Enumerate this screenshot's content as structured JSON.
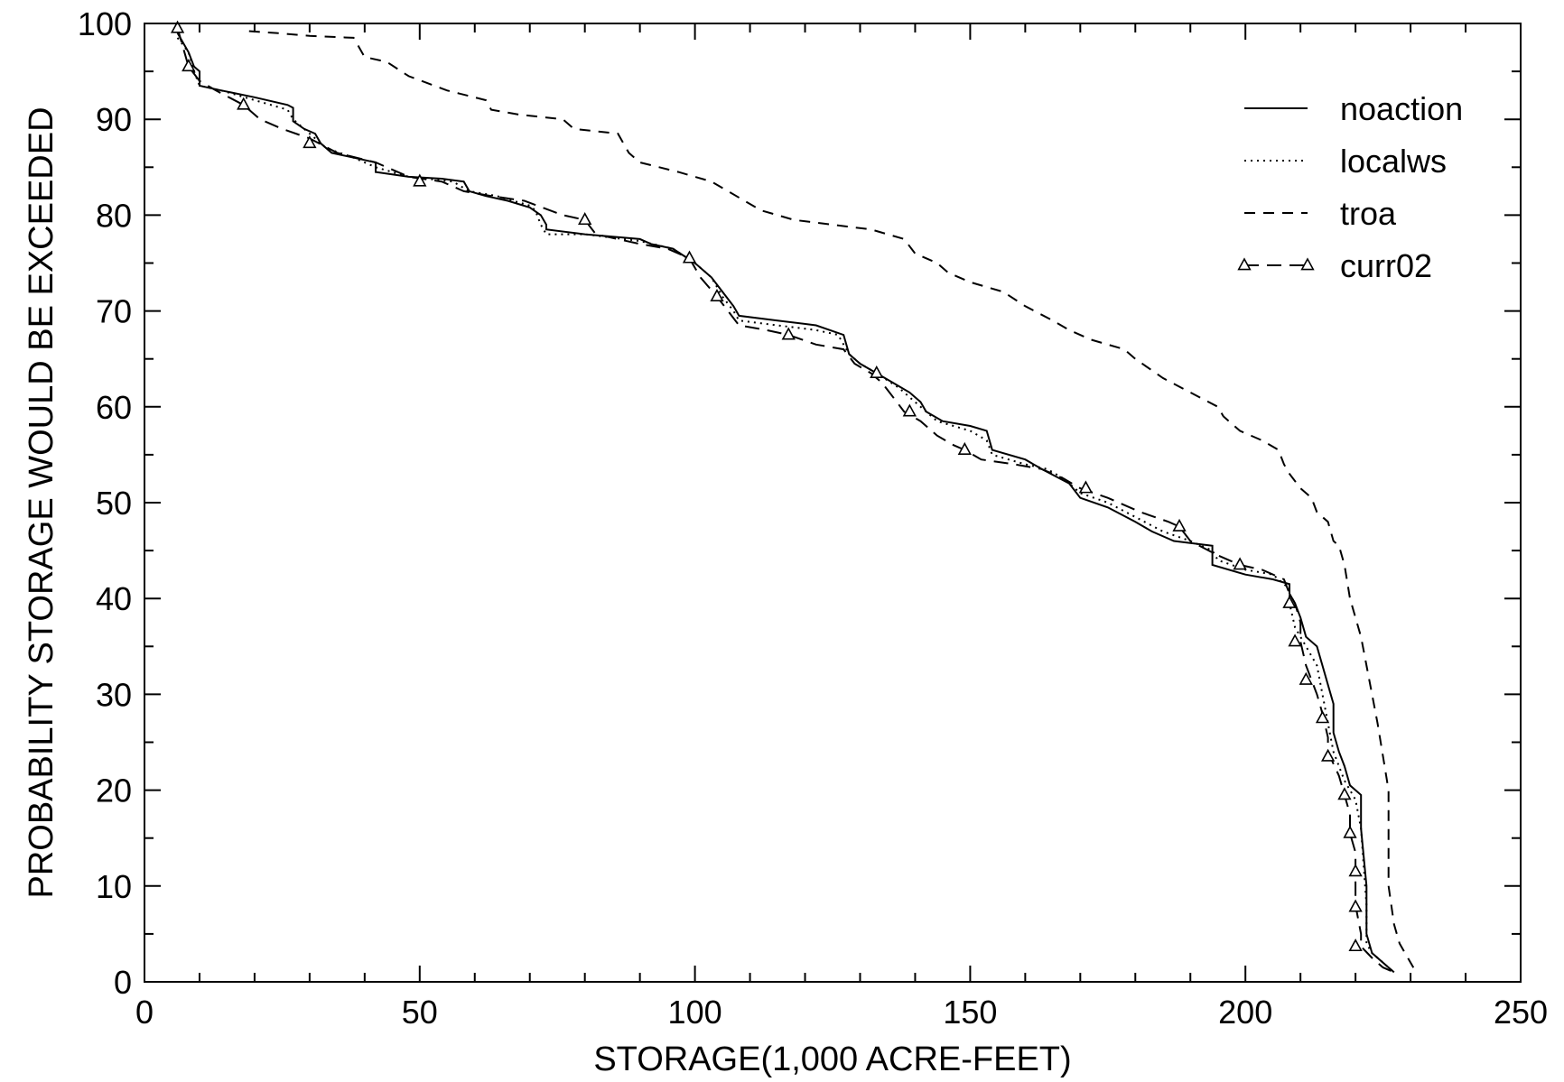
{
  "chart_data": {
    "type": "line",
    "title": "",
    "xlabel": "STORAGE(1,000 ACRE-FEET)",
    "ylabel": "PROBABILITY STORAGE WOULD BE EXCEEDED",
    "xlim": [
      0,
      250
    ],
    "ylim": [
      0,
      100
    ],
    "x_ticks": [
      0,
      50,
      100,
      150,
      200,
      250
    ],
    "y_ticks": [
      0,
      10,
      20,
      30,
      40,
      50,
      60,
      70,
      80,
      90,
      100
    ],
    "legend_position": "top-right",
    "series": [
      {
        "name": "noaction",
        "style": "solid",
        "points": [
          [
            6,
            99
          ],
          [
            7,
            98
          ],
          [
            8,
            97
          ],
          [
            9,
            95.5
          ],
          [
            10,
            95
          ],
          [
            10,
            93.5
          ],
          [
            14,
            93
          ],
          [
            20,
            92.3
          ],
          [
            26,
            91.5
          ],
          [
            27,
            91.2
          ],
          [
            27,
            89.8
          ],
          [
            29,
            89
          ],
          [
            31,
            88.5
          ],
          [
            32,
            87.5
          ],
          [
            34,
            86.5
          ],
          [
            38,
            86
          ],
          [
            42,
            85.5
          ],
          [
            42,
            84.5
          ],
          [
            48,
            84
          ],
          [
            54,
            83.8
          ],
          [
            58,
            83.5
          ],
          [
            59,
            82.5
          ],
          [
            62,
            82
          ],
          [
            66,
            81.5
          ],
          [
            70,
            80.8
          ],
          [
            72,
            80
          ],
          [
            73,
            79
          ],
          [
            73,
            78.5
          ],
          [
            80,
            78
          ],
          [
            90,
            77.5
          ],
          [
            92,
            77
          ],
          [
            96,
            76.5
          ],
          [
            100,
            75
          ],
          [
            103,
            73.5
          ],
          [
            105,
            72
          ],
          [
            107,
            70.5
          ],
          [
            108,
            69.5
          ],
          [
            115,
            69
          ],
          [
            122,
            68.5
          ],
          [
            127,
            67.5
          ],
          [
            128,
            65.5
          ],
          [
            129,
            65
          ],
          [
            130,
            64.5
          ],
          [
            133,
            63.5
          ],
          [
            136,
            62.5
          ],
          [
            139,
            61.5
          ],
          [
            141,
            60.5
          ],
          [
            142,
            59.5
          ],
          [
            145,
            58.5
          ],
          [
            150,
            58
          ],
          [
            153,
            57.5
          ],
          [
            154,
            55.5
          ],
          [
            160,
            54.5
          ],
          [
            163,
            53.5
          ],
          [
            168,
            52
          ],
          [
            170,
            50.5
          ],
          [
            175,
            49.5
          ],
          [
            180,
            48
          ],
          [
            183,
            47
          ],
          [
            187,
            46
          ],
          [
            194,
            45.5
          ],
          [
            194,
            43.5
          ],
          [
            200,
            42.5
          ],
          [
            205,
            42
          ],
          [
            208,
            41.5
          ],
          [
            208,
            40.5
          ],
          [
            209,
            39.5
          ],
          [
            210,
            38
          ],
          [
            211,
            36
          ],
          [
            213,
            35
          ],
          [
            214,
            33
          ],
          [
            215,
            31
          ],
          [
            216,
            29
          ],
          [
            216,
            26
          ],
          [
            217,
            24
          ],
          [
            218,
            22.5
          ],
          [
            219,
            20.5
          ],
          [
            221,
            19.5
          ],
          [
            221,
            16
          ],
          [
            222,
            10
          ],
          [
            222,
            5
          ],
          [
            223,
            3
          ],
          [
            226,
            1.5
          ],
          [
            227,
            1
          ]
        ]
      },
      {
        "name": "localws",
        "style": "dotted",
        "points": [
          [
            6,
            98.5
          ],
          [
            8,
            97
          ],
          [
            9,
            95
          ],
          [
            10,
            93.5
          ],
          [
            14,
            93
          ],
          [
            20,
            92
          ],
          [
            26,
            91
          ],
          [
            27,
            90
          ],
          [
            29,
            89
          ],
          [
            31,
            88
          ],
          [
            33,
            87
          ],
          [
            38,
            86
          ],
          [
            42,
            85
          ],
          [
            48,
            84
          ],
          [
            56,
            83.5
          ],
          [
            59,
            82.5
          ],
          [
            64,
            82
          ],
          [
            70,
            81
          ],
          [
            71,
            80.5
          ],
          [
            72,
            79
          ],
          [
            73,
            78
          ],
          [
            80,
            78
          ],
          [
            90,
            77.3
          ],
          [
            96,
            76.5
          ],
          [
            100,
            75
          ],
          [
            103,
            73.5
          ],
          [
            105,
            71.5
          ],
          [
            107,
            70
          ],
          [
            108,
            69
          ],
          [
            115,
            68.5
          ],
          [
            122,
            68
          ],
          [
            126,
            67.5
          ],
          [
            128,
            65.5
          ],
          [
            130,
            64.5
          ],
          [
            133,
            63.5
          ],
          [
            137,
            62
          ],
          [
            141,
            60
          ],
          [
            144,
            58.5
          ],
          [
            150,
            57.5
          ],
          [
            153,
            56.5
          ],
          [
            154,
            55
          ],
          [
            160,
            54
          ],
          [
            164,
            53.5
          ],
          [
            167,
            52.5
          ],
          [
            170,
            51
          ],
          [
            175,
            50
          ],
          [
            180,
            48.5
          ],
          [
            185,
            47
          ],
          [
            190,
            46
          ],
          [
            194,
            45
          ],
          [
            195,
            44
          ],
          [
            200,
            43
          ],
          [
            205,
            42.5
          ],
          [
            208,
            41
          ],
          [
            208,
            39.5
          ],
          [
            209,
            37
          ],
          [
            211,
            35
          ],
          [
            213,
            33
          ],
          [
            214,
            30
          ],
          [
            215,
            27
          ],
          [
            216,
            24
          ],
          [
            218,
            21
          ],
          [
            220,
            19
          ],
          [
            221,
            16
          ],
          [
            222,
            8
          ],
          [
            222,
            4
          ],
          [
            223,
            3
          ],
          [
            226,
            1.5
          ],
          [
            227,
            1
          ]
        ]
      },
      {
        "name": "troa",
        "style": "dashed",
        "points": [
          [
            19,
            99.2
          ],
          [
            24,
            99
          ],
          [
            30,
            98.7
          ],
          [
            38,
            98.5
          ],
          [
            40,
            96.5
          ],
          [
            44,
            96
          ],
          [
            48,
            94.5
          ],
          [
            55,
            93
          ],
          [
            62,
            92
          ],
          [
            63,
            91
          ],
          [
            68,
            90.5
          ],
          [
            76,
            90
          ],
          [
            78,
            89
          ],
          [
            86,
            88.5
          ],
          [
            88,
            86.5
          ],
          [
            90,
            85.5
          ],
          [
            97,
            84.5
          ],
          [
            103,
            83.5
          ],
          [
            106,
            82.5
          ],
          [
            112,
            80.5
          ],
          [
            118,
            79.5
          ],
          [
            125,
            79
          ],
          [
            132,
            78.5
          ],
          [
            138,
            77.5
          ],
          [
            140,
            76
          ],
          [
            144,
            75
          ],
          [
            146,
            74
          ],
          [
            150,
            73
          ],
          [
            156,
            72
          ],
          [
            160,
            70.5
          ],
          [
            165,
            69
          ],
          [
            168,
            68
          ],
          [
            172,
            67
          ],
          [
            178,
            66
          ],
          [
            180,
            65
          ],
          [
            185,
            63
          ],
          [
            190,
            61.5
          ],
          [
            195,
            60
          ],
          [
            196,
            59
          ],
          [
            199,
            57.5
          ],
          [
            203,
            56.5
          ],
          [
            206,
            55.5
          ],
          [
            207,
            54
          ],
          [
            208,
            53
          ],
          [
            210,
            51.5
          ],
          [
            212,
            50.5
          ],
          [
            213,
            49
          ],
          [
            215,
            48
          ],
          [
            216,
            46
          ],
          [
            217,
            45.5
          ],
          [
            218,
            43.5
          ],
          [
            219,
            40
          ],
          [
            220,
            38
          ],
          [
            221,
            36
          ],
          [
            222,
            33
          ],
          [
            223,
            30
          ],
          [
            224,
            27
          ],
          [
            225,
            23.5
          ],
          [
            226,
            20
          ],
          [
            226,
            15
          ],
          [
            226,
            10
          ],
          [
            227,
            6
          ],
          [
            228,
            4
          ],
          [
            230,
            2
          ],
          [
            231,
            1
          ]
        ]
      },
      {
        "name": "curr02",
        "style": "long-dash-triangle",
        "points": [
          [
            6,
            99.5
          ],
          [
            7,
            97.5
          ],
          [
            8,
            95.5
          ],
          [
            10,
            94
          ],
          [
            13,
            93
          ],
          [
            18,
            91.5
          ],
          [
            21,
            90
          ],
          [
            25,
            89
          ],
          [
            30,
            88
          ],
          [
            35,
            86.5
          ],
          [
            42,
            85.5
          ],
          [
            48,
            84
          ],
          [
            54,
            83.5
          ],
          [
            58,
            82.5
          ],
          [
            63,
            82
          ],
          [
            69,
            81.5
          ],
          [
            76,
            80
          ],
          [
            80,
            79.5
          ],
          [
            82,
            78
          ],
          [
            90,
            77
          ],
          [
            95,
            76.5
          ],
          [
            99,
            75.5
          ],
          [
            101,
            73.5
          ],
          [
            104,
            71.5
          ],
          [
            106,
            70
          ],
          [
            108,
            68.5
          ],
          [
            113,
            68
          ],
          [
            117,
            67.5
          ],
          [
            122,
            66.5
          ],
          [
            127,
            66
          ],
          [
            129,
            64.5
          ],
          [
            132,
            63.5
          ],
          [
            134,
            62.5
          ],
          [
            136,
            61
          ],
          [
            138,
            59.5
          ],
          [
            141,
            58.5
          ],
          [
            144,
            57
          ],
          [
            147,
            56
          ],
          [
            149,
            55.5
          ],
          [
            152,
            54.5
          ],
          [
            158,
            54
          ],
          [
            163,
            53.5
          ],
          [
            167,
            52.5
          ],
          [
            170,
            51.5
          ],
          [
            175,
            50.5
          ],
          [
            181,
            49
          ],
          [
            186,
            48
          ],
          [
            188,
            47.5
          ],
          [
            190,
            46
          ],
          [
            195,
            44.5
          ],
          [
            199,
            43.5
          ],
          [
            203,
            43
          ],
          [
            207,
            42
          ],
          [
            208,
            40.5
          ],
          [
            209,
            39.5
          ],
          [
            210,
            37.5
          ],
          [
            210,
            35.5
          ],
          [
            211,
            33
          ],
          [
            212,
            31.5
          ],
          [
            213,
            30
          ],
          [
            214,
            28
          ],
          [
            215,
            25.5
          ],
          [
            215,
            24
          ],
          [
            217,
            21.5
          ],
          [
            218,
            19.5
          ],
          [
            219,
            17.5
          ],
          [
            219,
            15.5
          ],
          [
            220,
            13.5
          ],
          [
            220,
            11.5
          ],
          [
            220,
            10
          ],
          [
            220,
            8
          ],
          [
            221,
            5
          ],
          [
            221,
            3.7
          ],
          [
            223,
            2.5
          ],
          [
            225,
            1.5
          ],
          [
            227,
            1
          ]
        ],
        "markers": [
          [
            6,
            99.5
          ],
          [
            8,
            95.5
          ],
          [
            18,
            91.5
          ],
          [
            30,
            87.5
          ],
          [
            50,
            83.5
          ],
          [
            80,
            79.5
          ],
          [
            99,
            75.5
          ],
          [
            104,
            71.5
          ],
          [
            117,
            67.5
          ],
          [
            133,
            63.5
          ],
          [
            139,
            59.5
          ],
          [
            149,
            55.5
          ],
          [
            171,
            51.5
          ],
          [
            188,
            47.5
          ],
          [
            199,
            43.5
          ],
          [
            208,
            39.5
          ],
          [
            209,
            35.5
          ],
          [
            211,
            31.5
          ],
          [
            214,
            27.5
          ],
          [
            215,
            23.5
          ],
          [
            218,
            19.5
          ],
          [
            219,
            15.5
          ],
          [
            220,
            11.5
          ],
          [
            220,
            7.8
          ],
          [
            220,
            3.7
          ]
        ]
      }
    ]
  }
}
